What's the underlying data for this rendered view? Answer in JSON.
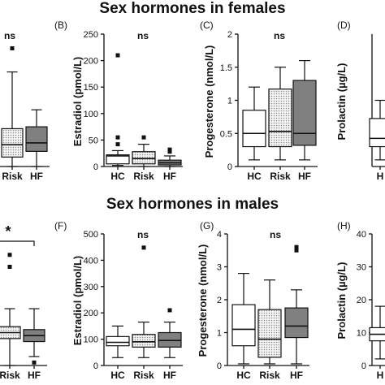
{
  "titles": {
    "females": "Sex hormones in females",
    "males": "Sex hormones in males"
  },
  "chart_data": [
    {
      "type": "box",
      "label": "",
      "group": "females",
      "categories": [
        "Risk",
        "HF"
      ],
      "boxes": [
        {
          "min": 2,
          "q1": 3.0,
          "median": 4.3,
          "q3": 6.0,
          "max": 12.0,
          "outliers": [
            14.5
          ]
        },
        {
          "min": 2,
          "q1": 3.6,
          "median": 4.5,
          "q3": 6.2,
          "max": 8.0,
          "outliers": []
        }
      ],
      "ylim": [
        2,
        16
      ],
      "yticks": [],
      "ylabel": "",
      "annotation": "ns"
    },
    {
      "type": "box",
      "label": "(B)",
      "group": "females",
      "categories": [
        "HC",
        "Risk",
        "HF"
      ],
      "boxes": [
        {
          "min": 2,
          "q1": 5,
          "median": 20,
          "q3": 22,
          "max": 30,
          "outliers": [
            42,
            55,
            210
          ]
        },
        {
          "min": 0,
          "q1": 5,
          "median": 15,
          "q3": 28,
          "max": 42,
          "outliers": [
            55
          ]
        },
        {
          "min": 0,
          "q1": 3,
          "median": 7,
          "q3": 12,
          "max": 20,
          "outliers": [
            28,
            32
          ]
        }
      ],
      "ylim": [
        0,
        250
      ],
      "yticks": [
        0,
        50,
        100,
        150,
        200,
        250
      ],
      "ylabel": "Estradiol (pmol/L)",
      "annotation": "ns"
    },
    {
      "type": "box",
      "label": "(C)",
      "group": "females",
      "categories": [
        "HC",
        "Risk",
        "HF"
      ],
      "boxes": [
        {
          "min": 0.1,
          "q1": 0.3,
          "median": 0.5,
          "q3": 0.85,
          "max": 1.2,
          "outliers": []
        },
        {
          "min": 0.1,
          "q1": 0.3,
          "median": 0.53,
          "q3": 1.17,
          "max": 1.5,
          "outliers": []
        },
        {
          "min": 0.1,
          "q1": 0.32,
          "median": 0.5,
          "q3": 1.3,
          "max": 1.6,
          "outliers": []
        }
      ],
      "ylim": [
        0,
        2.0
      ],
      "yticks": [
        0,
        0.5,
        1.0,
        1.5,
        2.0
      ],
      "ylabel": "Progesterone (nmol/L)",
      "annotation": "ns"
    },
    {
      "type": "box",
      "label": "(D)",
      "group": "females",
      "categories": [
        "H"
      ],
      "boxes": [
        {
          "min": 2,
          "q1": 6,
          "median": 8.5,
          "q3": 14.5,
          "max": 20,
          "outliers": []
        }
      ],
      "ylim": [
        0,
        40
      ],
      "yticks": [],
      "ylabel": "Prolactin (µg/L)",
      "annotation": ""
    },
    {
      "type": "box",
      "label": "",
      "group": "males",
      "categories": [
        "Risk",
        "HF"
      ],
      "boxes": [
        {
          "min": 2,
          "q1": 11,
          "median": 13,
          "q3": 15,
          "max": 21,
          "outliers": [
            35,
            39
          ]
        },
        {
          "min": 5,
          "q1": 10,
          "median": 12,
          "q3": 14,
          "max": 21,
          "outliers": [
            3
          ]
        }
      ],
      "ylim": [
        2,
        46
      ],
      "yticks": [],
      "ylabel": "",
      "annotation": "*"
    },
    {
      "type": "box",
      "label": "(F)",
      "group": "males",
      "categories": [
        "HC",
        "Risk",
        "HF"
      ],
      "boxes": [
        {
          "min": 30,
          "q1": 75,
          "median": 88,
          "q3": 110,
          "max": 150,
          "outliers": []
        },
        {
          "min": 30,
          "q1": 70,
          "median": 90,
          "q3": 118,
          "max": 165,
          "outliers": [
            448
          ]
        },
        {
          "min": 30,
          "q1": 70,
          "median": 95,
          "q3": 125,
          "max": 165,
          "outliers": [
            210
          ]
        }
      ],
      "ylim": [
        0,
        500
      ],
      "yticks": [
        0,
        100,
        200,
        300,
        400,
        500
      ],
      "ylabel": "Estradiol (pmol/L)",
      "annotation": "ns"
    },
    {
      "type": "box",
      "label": "(G)",
      "group": "males",
      "categories": [
        "HC",
        "Risk",
        "HF"
      ],
      "boxes": [
        {
          "min": 0.05,
          "q1": 0.6,
          "median": 1.1,
          "q3": 1.85,
          "max": 2.8,
          "outliers": []
        },
        {
          "min": 0.05,
          "q1": 0.25,
          "median": 0.8,
          "q3": 1.7,
          "max": 2.6,
          "outliers": []
        },
        {
          "min": 0.05,
          "q1": 0.85,
          "median": 1.2,
          "q3": 1.75,
          "max": 2.3,
          "outliers": [
            3.5,
            3.6
          ]
        }
      ],
      "ylim": [
        0,
        4
      ],
      "yticks": [
        0,
        1,
        2,
        3,
        4
      ],
      "ylabel": "Progesterone (nmol/L)",
      "annotation": "ns"
    },
    {
      "type": "box",
      "label": "(H)",
      "group": "males",
      "categories": [
        "H"
      ],
      "boxes": [
        {
          "min": 2,
          "q1": 7.5,
          "median": 9.5,
          "q3": 11.5,
          "max": 18,
          "outliers": []
        }
      ],
      "ylim": [
        0,
        40
      ],
      "yticks": [
        0,
        10,
        20,
        30,
        40
      ],
      "ylabel": "Prolactin (µg/L)",
      "annotation": ""
    }
  ]
}
